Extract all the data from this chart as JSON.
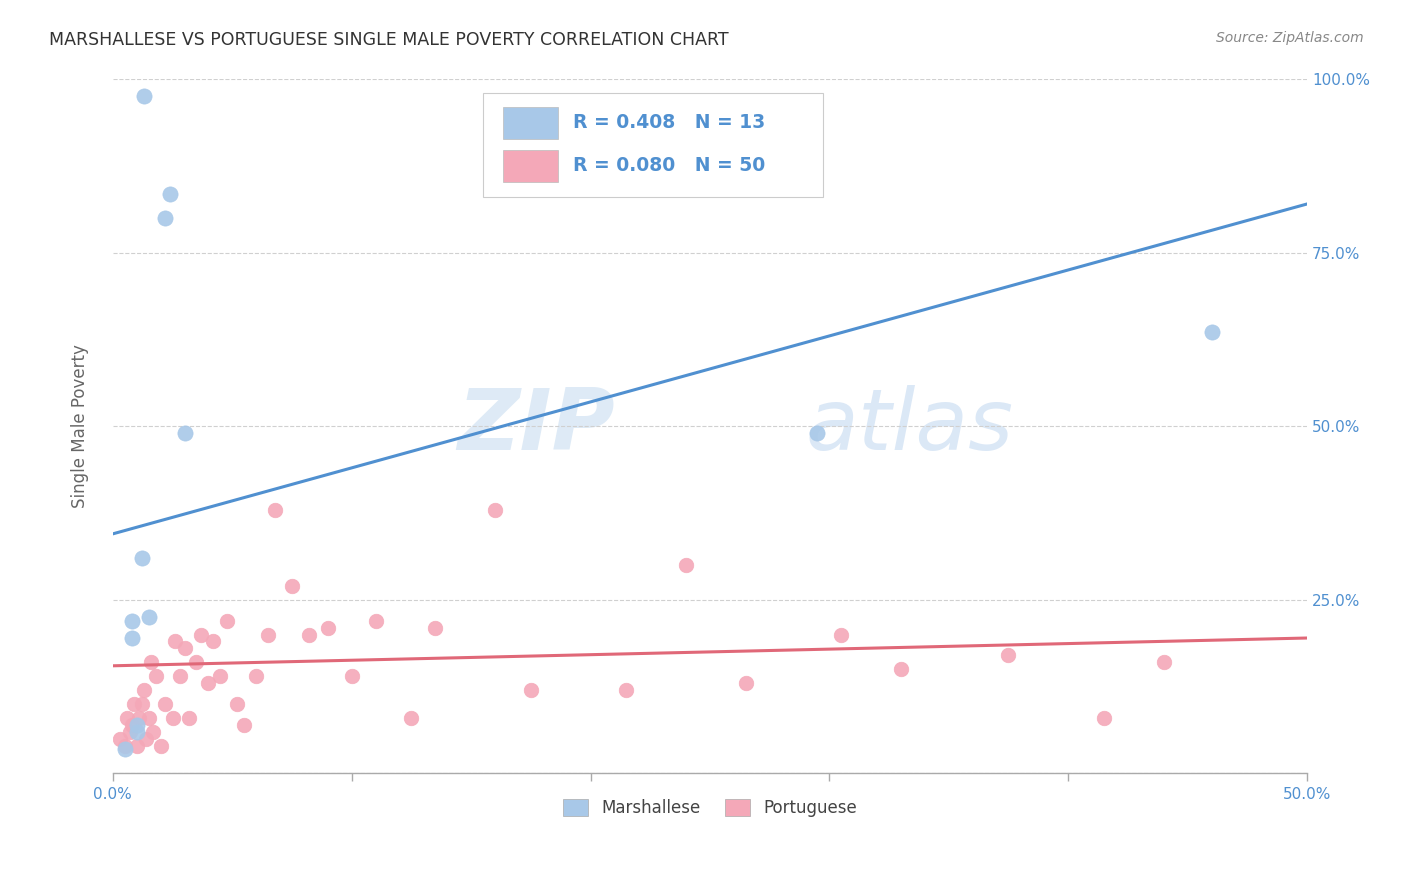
{
  "title": "MARSHALLESE VS PORTUGUESE SINGLE MALE POVERTY CORRELATION CHART",
  "source": "Source: ZipAtlas.com",
  "ylabel": "Single Male Poverty",
  "x_min": 0.0,
  "x_max": 0.5,
  "y_min": 0.0,
  "y_max": 1.0,
  "x_ticks": [
    0.0,
    0.1,
    0.2,
    0.3,
    0.4,
    0.5
  ],
  "y_ticks": [
    0.0,
    0.25,
    0.5,
    0.75,
    1.0
  ],
  "y_tick_labels": [
    "",
    "25.0%",
    "50.0%",
    "75.0%",
    "100.0%"
  ],
  "marshallese_R": 0.408,
  "marshallese_N": 13,
  "portuguese_R": 0.08,
  "portuguese_N": 50,
  "marshallese_color": "#a8c8e8",
  "portuguese_color": "#f4a8b8",
  "marshallese_line_color": "#5090d0",
  "portuguese_line_color": "#e06878",
  "watermark_zip": "ZIP",
  "watermark_atlas": "atlas",
  "marshallese_x": [
    0.005,
    0.008,
    0.008,
    0.01,
    0.01,
    0.012,
    0.013,
    0.015,
    0.022,
    0.024,
    0.03,
    0.295,
    0.46
  ],
  "marshallese_y": [
    0.035,
    0.195,
    0.22,
    0.06,
    0.07,
    0.31,
    0.975,
    0.225,
    0.8,
    0.835,
    0.49,
    0.49,
    0.635
  ],
  "portuguese_x": [
    0.003,
    0.005,
    0.006,
    0.007,
    0.008,
    0.009,
    0.01,
    0.011,
    0.012,
    0.013,
    0.014,
    0.015,
    0.016,
    0.017,
    0.018,
    0.02,
    0.022,
    0.025,
    0.026,
    0.028,
    0.03,
    0.032,
    0.035,
    0.037,
    0.04,
    0.042,
    0.045,
    0.048,
    0.052,
    0.055,
    0.06,
    0.065,
    0.068,
    0.075,
    0.082,
    0.09,
    0.1,
    0.11,
    0.125,
    0.135,
    0.16,
    0.175,
    0.215,
    0.24,
    0.265,
    0.305,
    0.33,
    0.375,
    0.415,
    0.44
  ],
  "portuguese_y": [
    0.05,
    0.04,
    0.08,
    0.06,
    0.07,
    0.1,
    0.04,
    0.08,
    0.1,
    0.12,
    0.05,
    0.08,
    0.16,
    0.06,
    0.14,
    0.04,
    0.1,
    0.08,
    0.19,
    0.14,
    0.18,
    0.08,
    0.16,
    0.2,
    0.13,
    0.19,
    0.14,
    0.22,
    0.1,
    0.07,
    0.14,
    0.2,
    0.38,
    0.27,
    0.2,
    0.21,
    0.14,
    0.22,
    0.08,
    0.21,
    0.38,
    0.12,
    0.12,
    0.3,
    0.13,
    0.2,
    0.15,
    0.17,
    0.08,
    0.16
  ],
  "blue_line_x": [
    0.0,
    0.5
  ],
  "blue_line_y": [
    0.345,
    0.82
  ],
  "pink_line_x": [
    0.0,
    0.5
  ],
  "pink_line_y": [
    0.155,
    0.195
  ],
  "legend_label_marsh": "Marshallese",
  "legend_label_port": "Portuguese",
  "background_color": "#ffffff",
  "grid_color": "#d0d0d0"
}
